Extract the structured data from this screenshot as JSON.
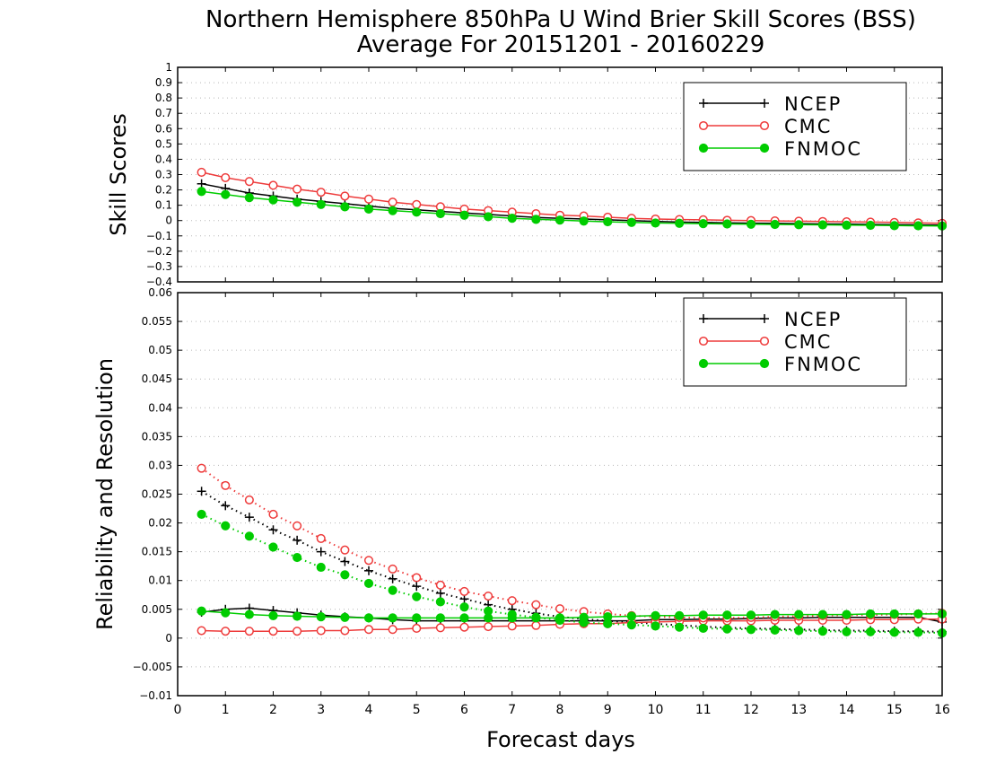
{
  "title_line1": "Northern Hemisphere 850hPa U Wind Brier Skill Scores (BSS)",
  "title_line2": "Average For 20151201 - 20160229",
  "xlabel": "Forecast days",
  "colors": {
    "NCEP": "#000000",
    "CMC": "#ee3b3b",
    "FNMOC": "#00cc00"
  },
  "chart_data": [
    {
      "type": "line",
      "panel": "top",
      "ylabel": "Skill Scores",
      "xlim": [
        0,
        16
      ],
      "ylim": [
        -0.4,
        1
      ],
      "xticks": [
        0,
        1,
        2,
        3,
        4,
        5,
        6,
        7,
        8,
        9,
        10,
        11,
        12,
        13,
        14,
        15,
        16
      ],
      "yticks": [
        -0.4,
        -0.3,
        -0.2,
        -0.1,
        0,
        0.1,
        0.2,
        0.3,
        0.4,
        0.5,
        0.6,
        0.7,
        0.8,
        0.9,
        1
      ],
      "grid": true,
      "legend": {
        "placement": "top-right",
        "entries": [
          "NCEP",
          "CMC",
          "FNMOC"
        ]
      },
      "x": [
        0.5,
        1,
        1.5,
        2,
        2.5,
        3,
        3.5,
        4,
        4.5,
        5,
        5.5,
        6,
        6.5,
        7,
        7.5,
        8,
        8.5,
        9,
        9.5,
        10,
        10.5,
        11,
        11.5,
        12,
        12.5,
        13,
        13.5,
        14,
        14.5,
        15,
        15.5,
        16
      ],
      "series": [
        {
          "name": "NCEP",
          "style": "solid",
          "marker": "plus",
          "values": [
            0.24,
            0.21,
            0.18,
            0.16,
            0.14,
            0.125,
            0.11,
            0.095,
            0.08,
            0.07,
            0.06,
            0.05,
            0.04,
            0.03,
            0.02,
            0.015,
            0.01,
            0.005,
            0,
            -0.005,
            -0.01,
            -0.012,
            -0.015,
            -0.017,
            -0.018,
            -0.02,
            -0.022,
            -0.023,
            -0.025,
            -0.026,
            -0.028,
            -0.03
          ]
        },
        {
          "name": "CMC",
          "style": "solid",
          "marker": "open-circle",
          "values": [
            0.315,
            0.28,
            0.255,
            0.23,
            0.205,
            0.185,
            0.16,
            0.14,
            0.12,
            0.105,
            0.09,
            0.075,
            0.065,
            0.055,
            0.045,
            0.035,
            0.03,
            0.022,
            0.015,
            0.01,
            0.007,
            0.005,
            0.002,
            0,
            -0.002,
            -0.004,
            -0.006,
            -0.008,
            -0.01,
            -0.012,
            -0.015,
            -0.018
          ]
        },
        {
          "name": "FNMOC",
          "style": "solid",
          "marker": "filled-circle",
          "values": [
            0.19,
            0.17,
            0.15,
            0.135,
            0.12,
            0.105,
            0.09,
            0.075,
            0.065,
            0.055,
            0.045,
            0.035,
            0.025,
            0.015,
            0.008,
            0.003,
            -0.003,
            -0.008,
            -0.012,
            -0.016,
            -0.018,
            -0.02,
            -0.022,
            -0.024,
            -0.025,
            -0.027,
            -0.028,
            -0.03,
            -0.031,
            -0.033,
            -0.034,
            -0.035
          ]
        }
      ]
    },
    {
      "type": "line",
      "panel": "bottom",
      "ylabel": "Reliability and Resolution",
      "xlim": [
        0,
        16
      ],
      "ylim": [
        -0.01,
        0.06
      ],
      "xticks": [
        0,
        1,
        2,
        3,
        4,
        5,
        6,
        7,
        8,
        9,
        10,
        11,
        12,
        13,
        14,
        15,
        16
      ],
      "yticks": [
        -0.01,
        -0.005,
        0,
        0.005,
        0.01,
        0.015,
        0.02,
        0.025,
        0.03,
        0.035,
        0.04,
        0.045,
        0.05,
        0.055,
        0.06
      ],
      "grid": true,
      "legend": {
        "placement": "top-right",
        "entries": [
          "NCEP",
          "CMC",
          "FNMOC"
        ]
      },
      "x": [
        0.5,
        1,
        1.5,
        2,
        2.5,
        3,
        3.5,
        4,
        4.5,
        5,
        5.5,
        6,
        6.5,
        7,
        7.5,
        8,
        8.5,
        9,
        9.5,
        10,
        10.5,
        11,
        11.5,
        12,
        12.5,
        13,
        13.5,
        14,
        14.5,
        15,
        15.5,
        16
      ],
      "series": [
        {
          "name": "NCEP",
          "style": "solid",
          "marker": "plus",
          "values": [
            0.0045,
            0.005,
            0.0052,
            0.0048,
            0.0044,
            0.004,
            0.0037,
            0.0035,
            0.0032,
            0.003,
            0.003,
            0.003,
            0.003,
            0.003,
            0.003,
            0.003,
            0.003,
            0.003,
            0.003,
            0.0032,
            0.0032,
            0.0033,
            0.0033,
            0.0034,
            0.0035,
            0.0035,
            0.0036,
            0.0036,
            0.0036,
            0.0036,
            0.0036,
            0.0028
          ]
        },
        {
          "name": "NCEP",
          "style": "dotted",
          "marker": "plus",
          "values": [
            0.0255,
            0.023,
            0.021,
            0.0188,
            0.017,
            0.015,
            0.0133,
            0.0117,
            0.0103,
            0.009,
            0.0078,
            0.0068,
            0.0058,
            0.005,
            0.0043,
            0.0037,
            0.0033,
            0.003,
            0.0027,
            0.0025,
            0.0022,
            0.002,
            0.0018,
            0.0017,
            0.0016,
            0.0015,
            0.0014,
            0.0013,
            0.0013,
            0.0012,
            0.0012,
            0.0011
          ]
        },
        {
          "name": "CMC",
          "style": "solid",
          "marker": "open-circle",
          "values": [
            0.0013,
            0.0012,
            0.0012,
            0.0012,
            0.0012,
            0.0013,
            0.0013,
            0.0015,
            0.0015,
            0.0017,
            0.0018,
            0.0019,
            0.002,
            0.0021,
            0.0022,
            0.0024,
            0.0025,
            0.0025,
            0.0027,
            0.0028,
            0.0029,
            0.003,
            0.003,
            0.003,
            0.0031,
            0.0031,
            0.0031,
            0.0031,
            0.0032,
            0.0032,
            0.0033,
            0.0033
          ]
        },
        {
          "name": "CMC",
          "style": "dotted",
          "marker": "open-circle",
          "values": [
            0.0295,
            0.0265,
            0.024,
            0.0215,
            0.0195,
            0.0173,
            0.0153,
            0.0135,
            0.012,
            0.0105,
            0.0092,
            0.0081,
            0.0073,
            0.0065,
            0.0058,
            0.0051,
            0.0046,
            0.0042,
            0.0039,
            0.0037,
            0.0036,
            0.0035,
            0.0035,
            0.0036,
            0.0037,
            0.0038,
            0.0039,
            0.004,
            0.004,
            0.0041,
            0.0042,
            0.0043
          ]
        },
        {
          "name": "FNMOC",
          "style": "solid",
          "marker": "filled-circle",
          "values": [
            0.0047,
            0.0044,
            0.0041,
            0.0039,
            0.0038,
            0.0037,
            0.0036,
            0.0035,
            0.0035,
            0.0035,
            0.0035,
            0.0035,
            0.0035,
            0.0035,
            0.0035,
            0.0035,
            0.0036,
            0.0037,
            0.0038,
            0.0039,
            0.0039,
            0.004,
            0.004,
            0.004,
            0.0041,
            0.0041,
            0.0041,
            0.0041,
            0.0042,
            0.0042,
            0.0042,
            0.0042
          ]
        },
        {
          "name": "FNMOC",
          "style": "dotted",
          "marker": "filled-circle",
          "values": [
            0.0215,
            0.0195,
            0.0177,
            0.0158,
            0.014,
            0.0123,
            0.011,
            0.0095,
            0.0083,
            0.0072,
            0.0063,
            0.0054,
            0.0047,
            0.0041,
            0.0036,
            0.0031,
            0.0027,
            0.0025,
            0.0023,
            0.0021,
            0.0019,
            0.0017,
            0.0016,
            0.0015,
            0.0014,
            0.0013,
            0.0012,
            0.0011,
            0.0011,
            0.001,
            0.001,
            0.0009
          ]
        }
      ]
    }
  ]
}
